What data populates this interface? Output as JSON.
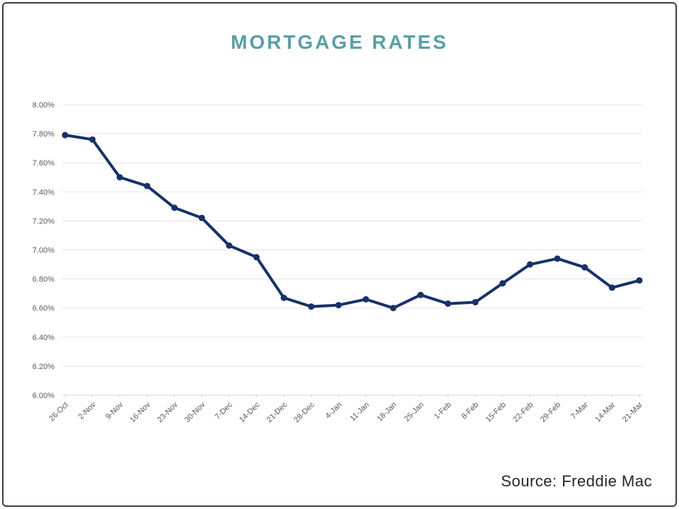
{
  "page": {
    "title": "MORTGAGE RATES",
    "source_label": "Source: Freddie Mac"
  },
  "chart_data": {
    "type": "line",
    "title": "MORTGAGE RATES",
    "xlabel": "",
    "ylabel": "",
    "categories": [
      "26-Oct",
      "2-Nov",
      "9-Nov",
      "16-Nov",
      "23-Nov",
      "30-Nov",
      "7-Dec",
      "14-Dec",
      "21-Dec",
      "28-Dec",
      "4-Jan",
      "11-Jan",
      "18-Jan",
      "25-Jan",
      "1-Feb",
      "8-Feb",
      "15-Feb",
      "22-Feb",
      "29-Feb",
      "7-Mar",
      "14-Mar",
      "21-Mar"
    ],
    "values": [
      7.79,
      7.76,
      7.5,
      7.44,
      7.29,
      7.22,
      7.03,
      6.95,
      6.67,
      6.61,
      6.62,
      6.66,
      6.6,
      6.69,
      6.63,
      6.64,
      6.77,
      6.9,
      6.94,
      6.88,
      6.74,
      6.79
    ],
    "ylim": [
      6.0,
      8.0
    ],
    "y_step": 0.2,
    "y_tick_labels": [
      "8.00%",
      "7.80%",
      "7.60%",
      "7.40%",
      "7.20%",
      "7.00%",
      "6.80%",
      "6.60%",
      "6.40%",
      "6.20%",
      "6.00%"
    ],
    "grid": true,
    "legend": false,
    "colors": {
      "line": "#16316b",
      "marker": "#16316b",
      "gridline": "#e3e3e3",
      "axis_line": "#d6d6d6",
      "tick_label": "#595959",
      "title": "#55a0a8"
    }
  }
}
